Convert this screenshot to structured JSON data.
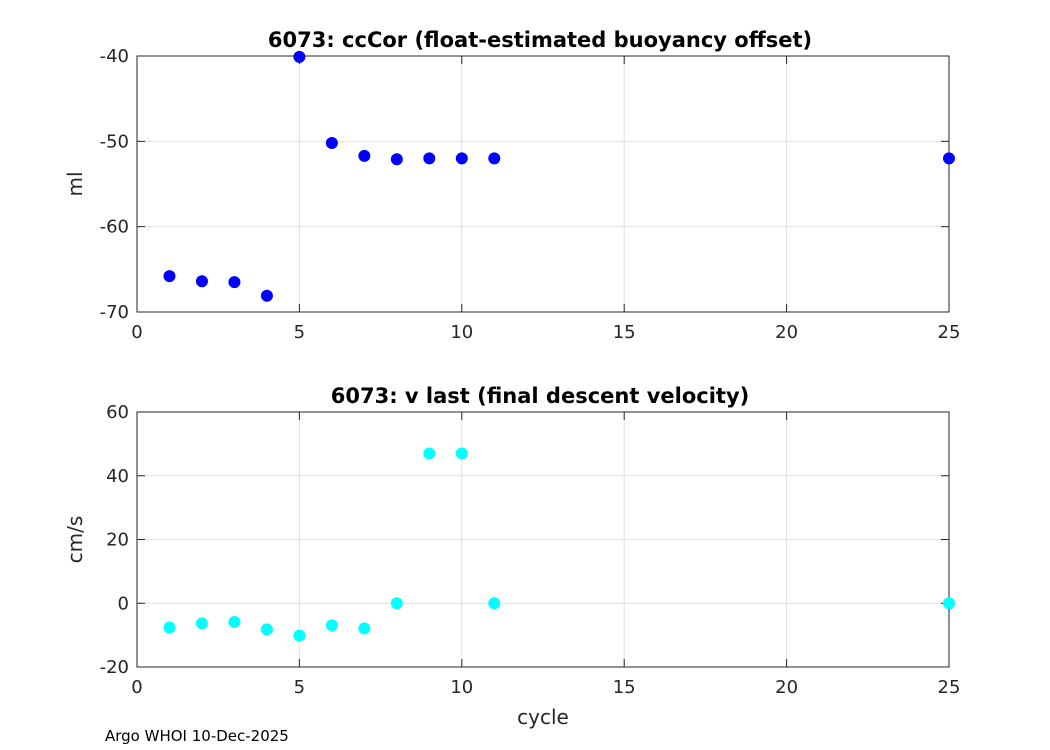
{
  "chart_data": [
    {
      "type": "scatter",
      "title": "6073: ccCor (float-estimated buoyancy offset)",
      "xlabel": "",
      "ylabel": "ml",
      "xlim": [
        0,
        25
      ],
      "ylim": [
        -70,
        -40
      ],
      "xticks": [
        0,
        5,
        10,
        15,
        20,
        25
      ],
      "yticks": [
        -70,
        -60,
        -50,
        -40
      ],
      "grid": true,
      "marker_color": "#0000ff",
      "x": [
        1,
        2,
        3,
        4,
        5,
        6,
        7,
        8,
        9,
        10,
        11,
        25
      ],
      "y": [
        -65.8,
        -66.4,
        -66.5,
        -68.1,
        -40.1,
        -50.2,
        -51.7,
        -52.1,
        -52.0,
        -52.0,
        -52.0,
        -52.0
      ]
    },
    {
      "type": "scatter",
      "title": "6073: v last (final descent velocity)",
      "xlabel": "cycle",
      "ylabel": "cm/s",
      "xlim": [
        0,
        25
      ],
      "ylim": [
        -20,
        60
      ],
      "xticks": [
        0,
        5,
        10,
        15,
        20,
        25
      ],
      "yticks": [
        -20,
        0,
        20,
        40,
        60
      ],
      "grid": true,
      "marker_color": "#00ffff",
      "x": [
        1,
        2,
        3,
        4,
        5,
        6,
        7,
        8,
        9,
        10,
        11,
        25
      ],
      "y": [
        -7.6,
        -6.3,
        -5.9,
        -8.2,
        -10.1,
        -6.9,
        -7.9,
        0,
        47,
        47,
        0,
        0
      ]
    }
  ],
  "footer": "Argo WHOI 10-Dec-2025"
}
